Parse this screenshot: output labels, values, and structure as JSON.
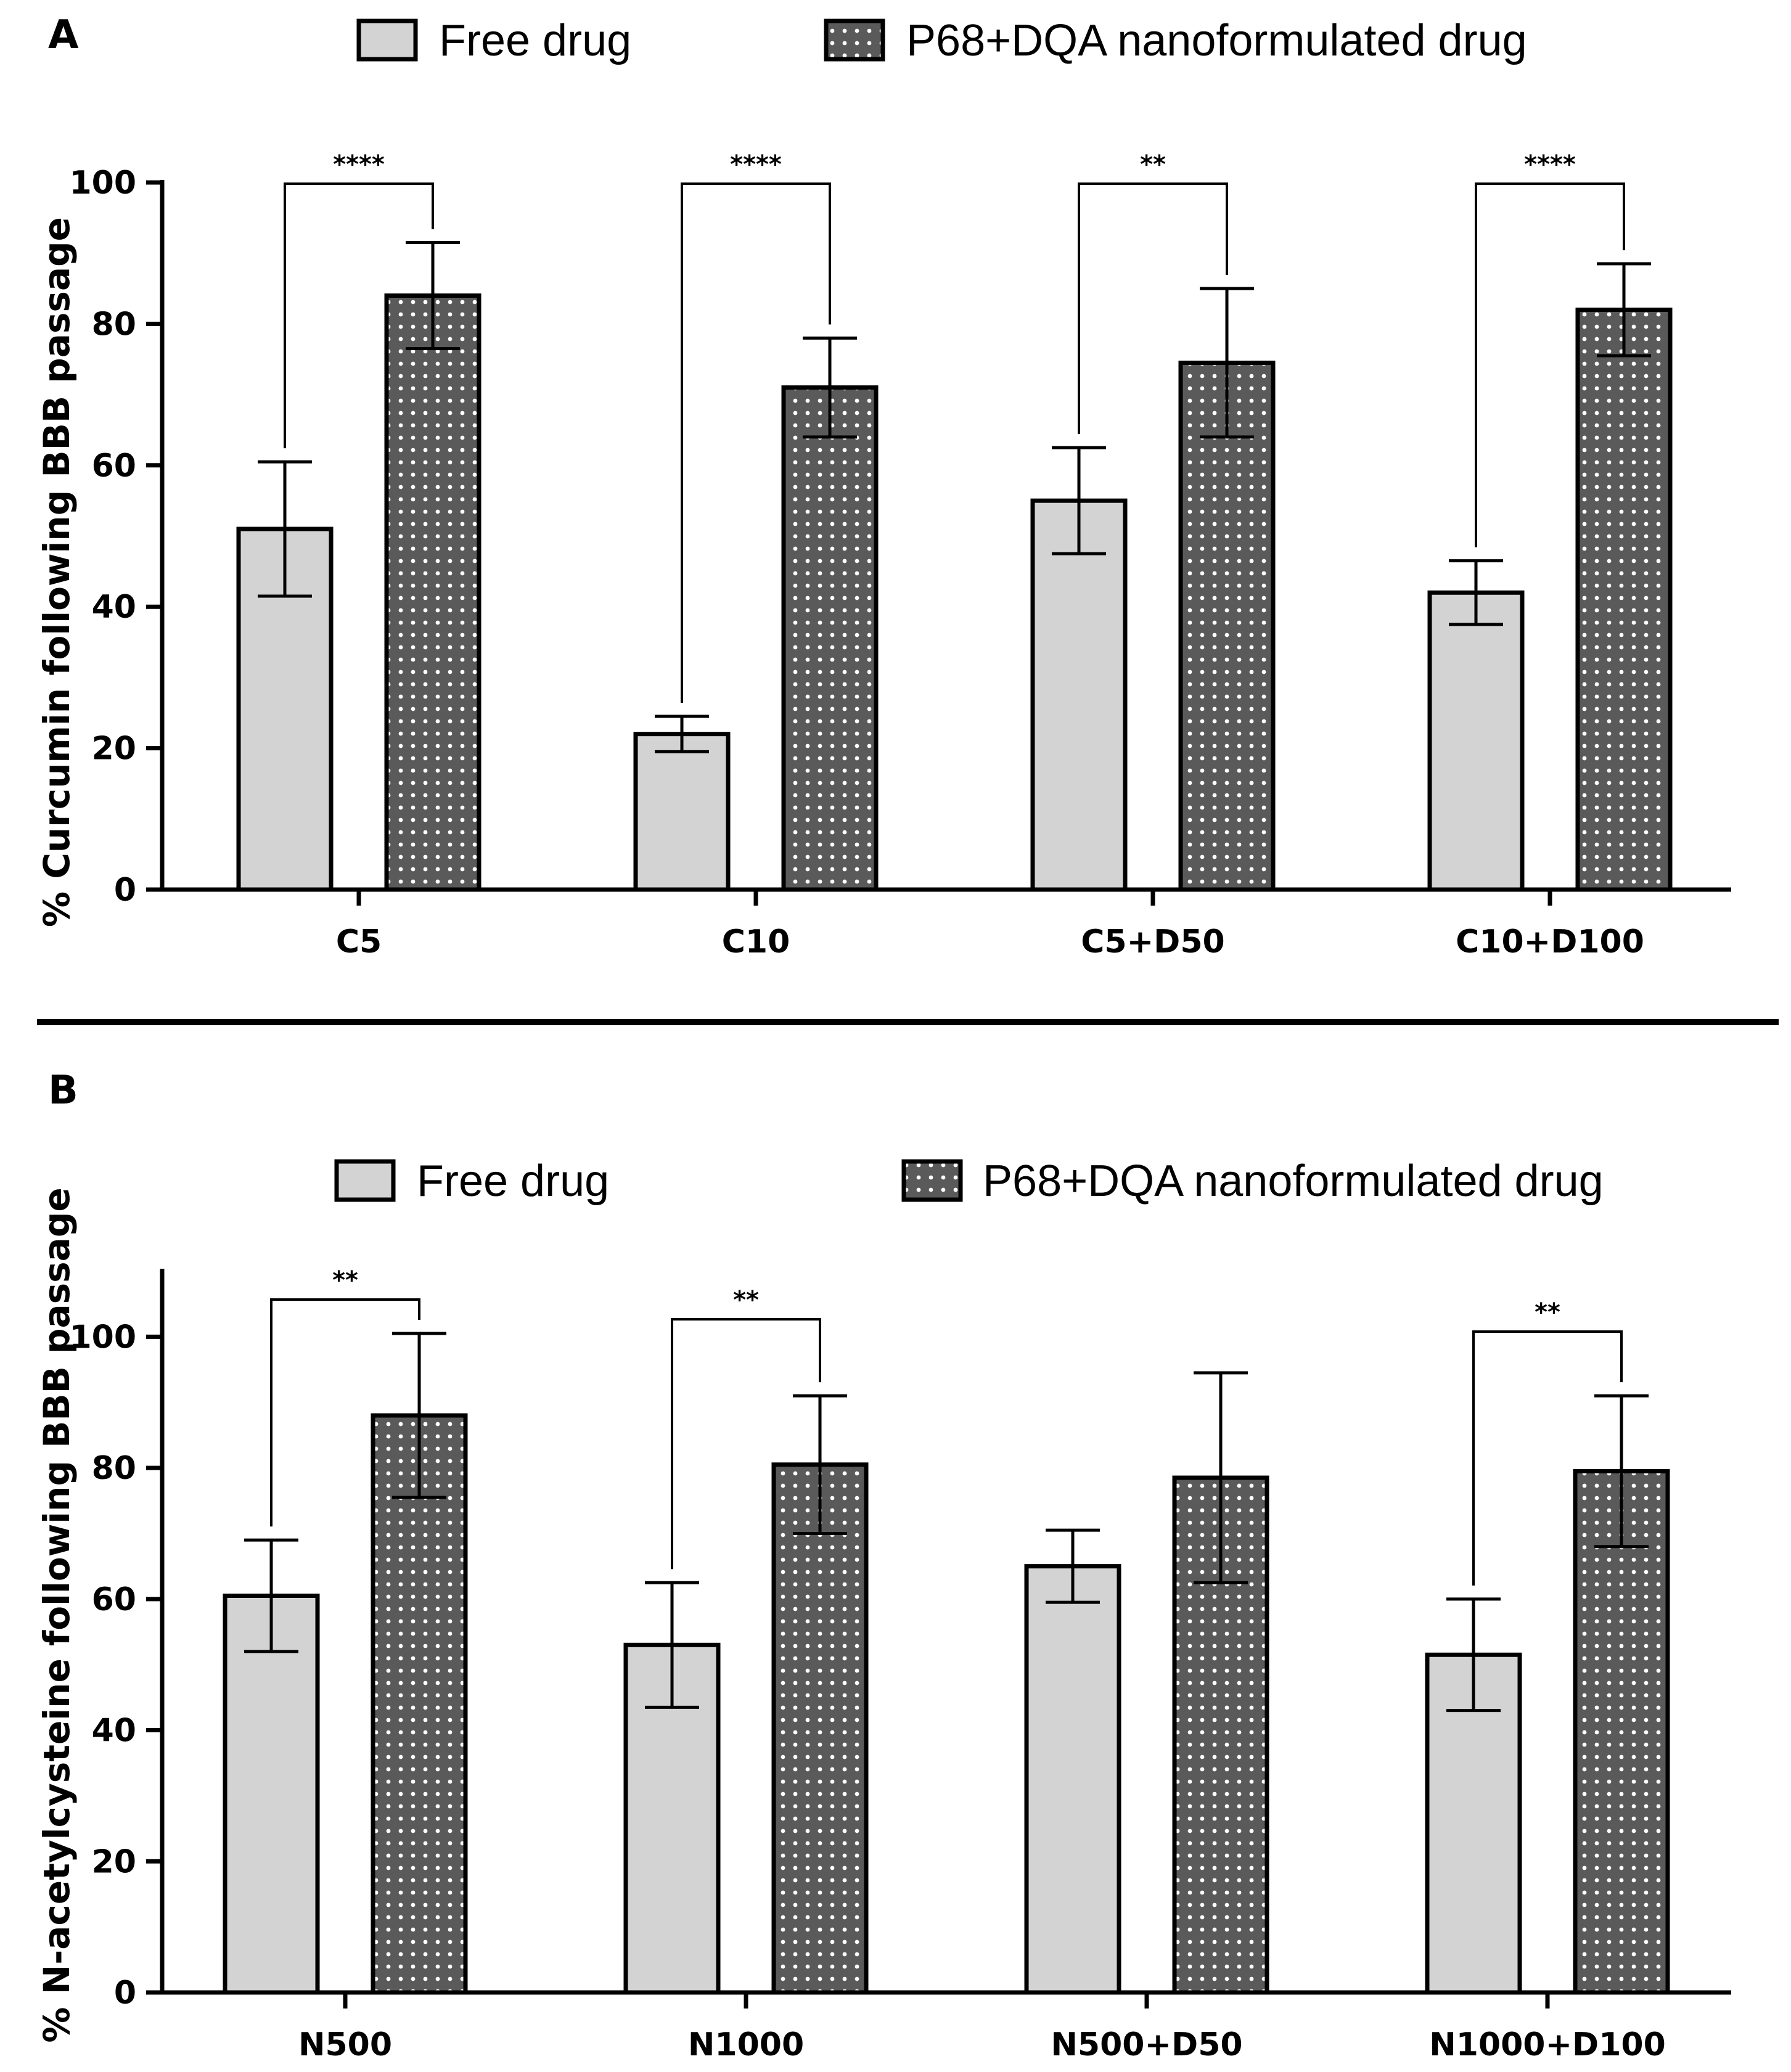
{
  "colors": {
    "free_fill": "#d3d3d3",
    "nano_fill": "#5a5a5a",
    "nano_dot": "#ffffff",
    "stroke": "#000000"
  },
  "legend": {
    "free_label": "Free drug",
    "nano_label": "P68+DQA nanoformulated drug"
  },
  "chart_data": [
    {
      "panel": "A",
      "type": "bar",
      "ylabel": "% Curcumin following BBB passage",
      "ylim": [
        0,
        100
      ],
      "yticks": [
        0,
        20,
        40,
        60,
        80,
        100
      ],
      "categories": [
        "C5",
        "C10",
        "C5+D50",
        "C10+D100"
      ],
      "series": [
        {
          "name": "Free drug",
          "values": [
            51,
            22,
            55,
            42
          ],
          "errors": [
            9.5,
            2.5,
            7.5,
            4.5
          ]
        },
        {
          "name": "P68+DQA nanoformulated drug",
          "values": [
            84,
            71,
            74.5,
            82
          ],
          "errors": [
            7.5,
            7,
            10.5,
            6.5
          ]
        }
      ],
      "significance": [
        "****",
        "****",
        "**",
        "****"
      ]
    },
    {
      "panel": "B",
      "type": "bar",
      "ylabel": "% N-acetylcysteine following BBB passage",
      "ylim": [
        0,
        110
      ],
      "yticks": [
        0,
        20,
        40,
        60,
        80,
        100
      ],
      "categories": [
        "N500",
        "N1000",
        "N500+D50",
        "N1000+D100"
      ],
      "series": [
        {
          "name": "Free drug",
          "values": [
            60.5,
            53,
            65,
            51.5
          ],
          "errors": [
            8.5,
            9.5,
            5.5,
            8.5
          ]
        },
        {
          "name": "P68+DQA nanoformulated drug",
          "values": [
            88,
            80.5,
            78.5,
            79.5
          ],
          "errors": [
            12.5,
            10.5,
            16,
            11.5
          ]
        }
      ],
      "significance": [
        "**",
        "**",
        "",
        "**"
      ]
    }
  ]
}
